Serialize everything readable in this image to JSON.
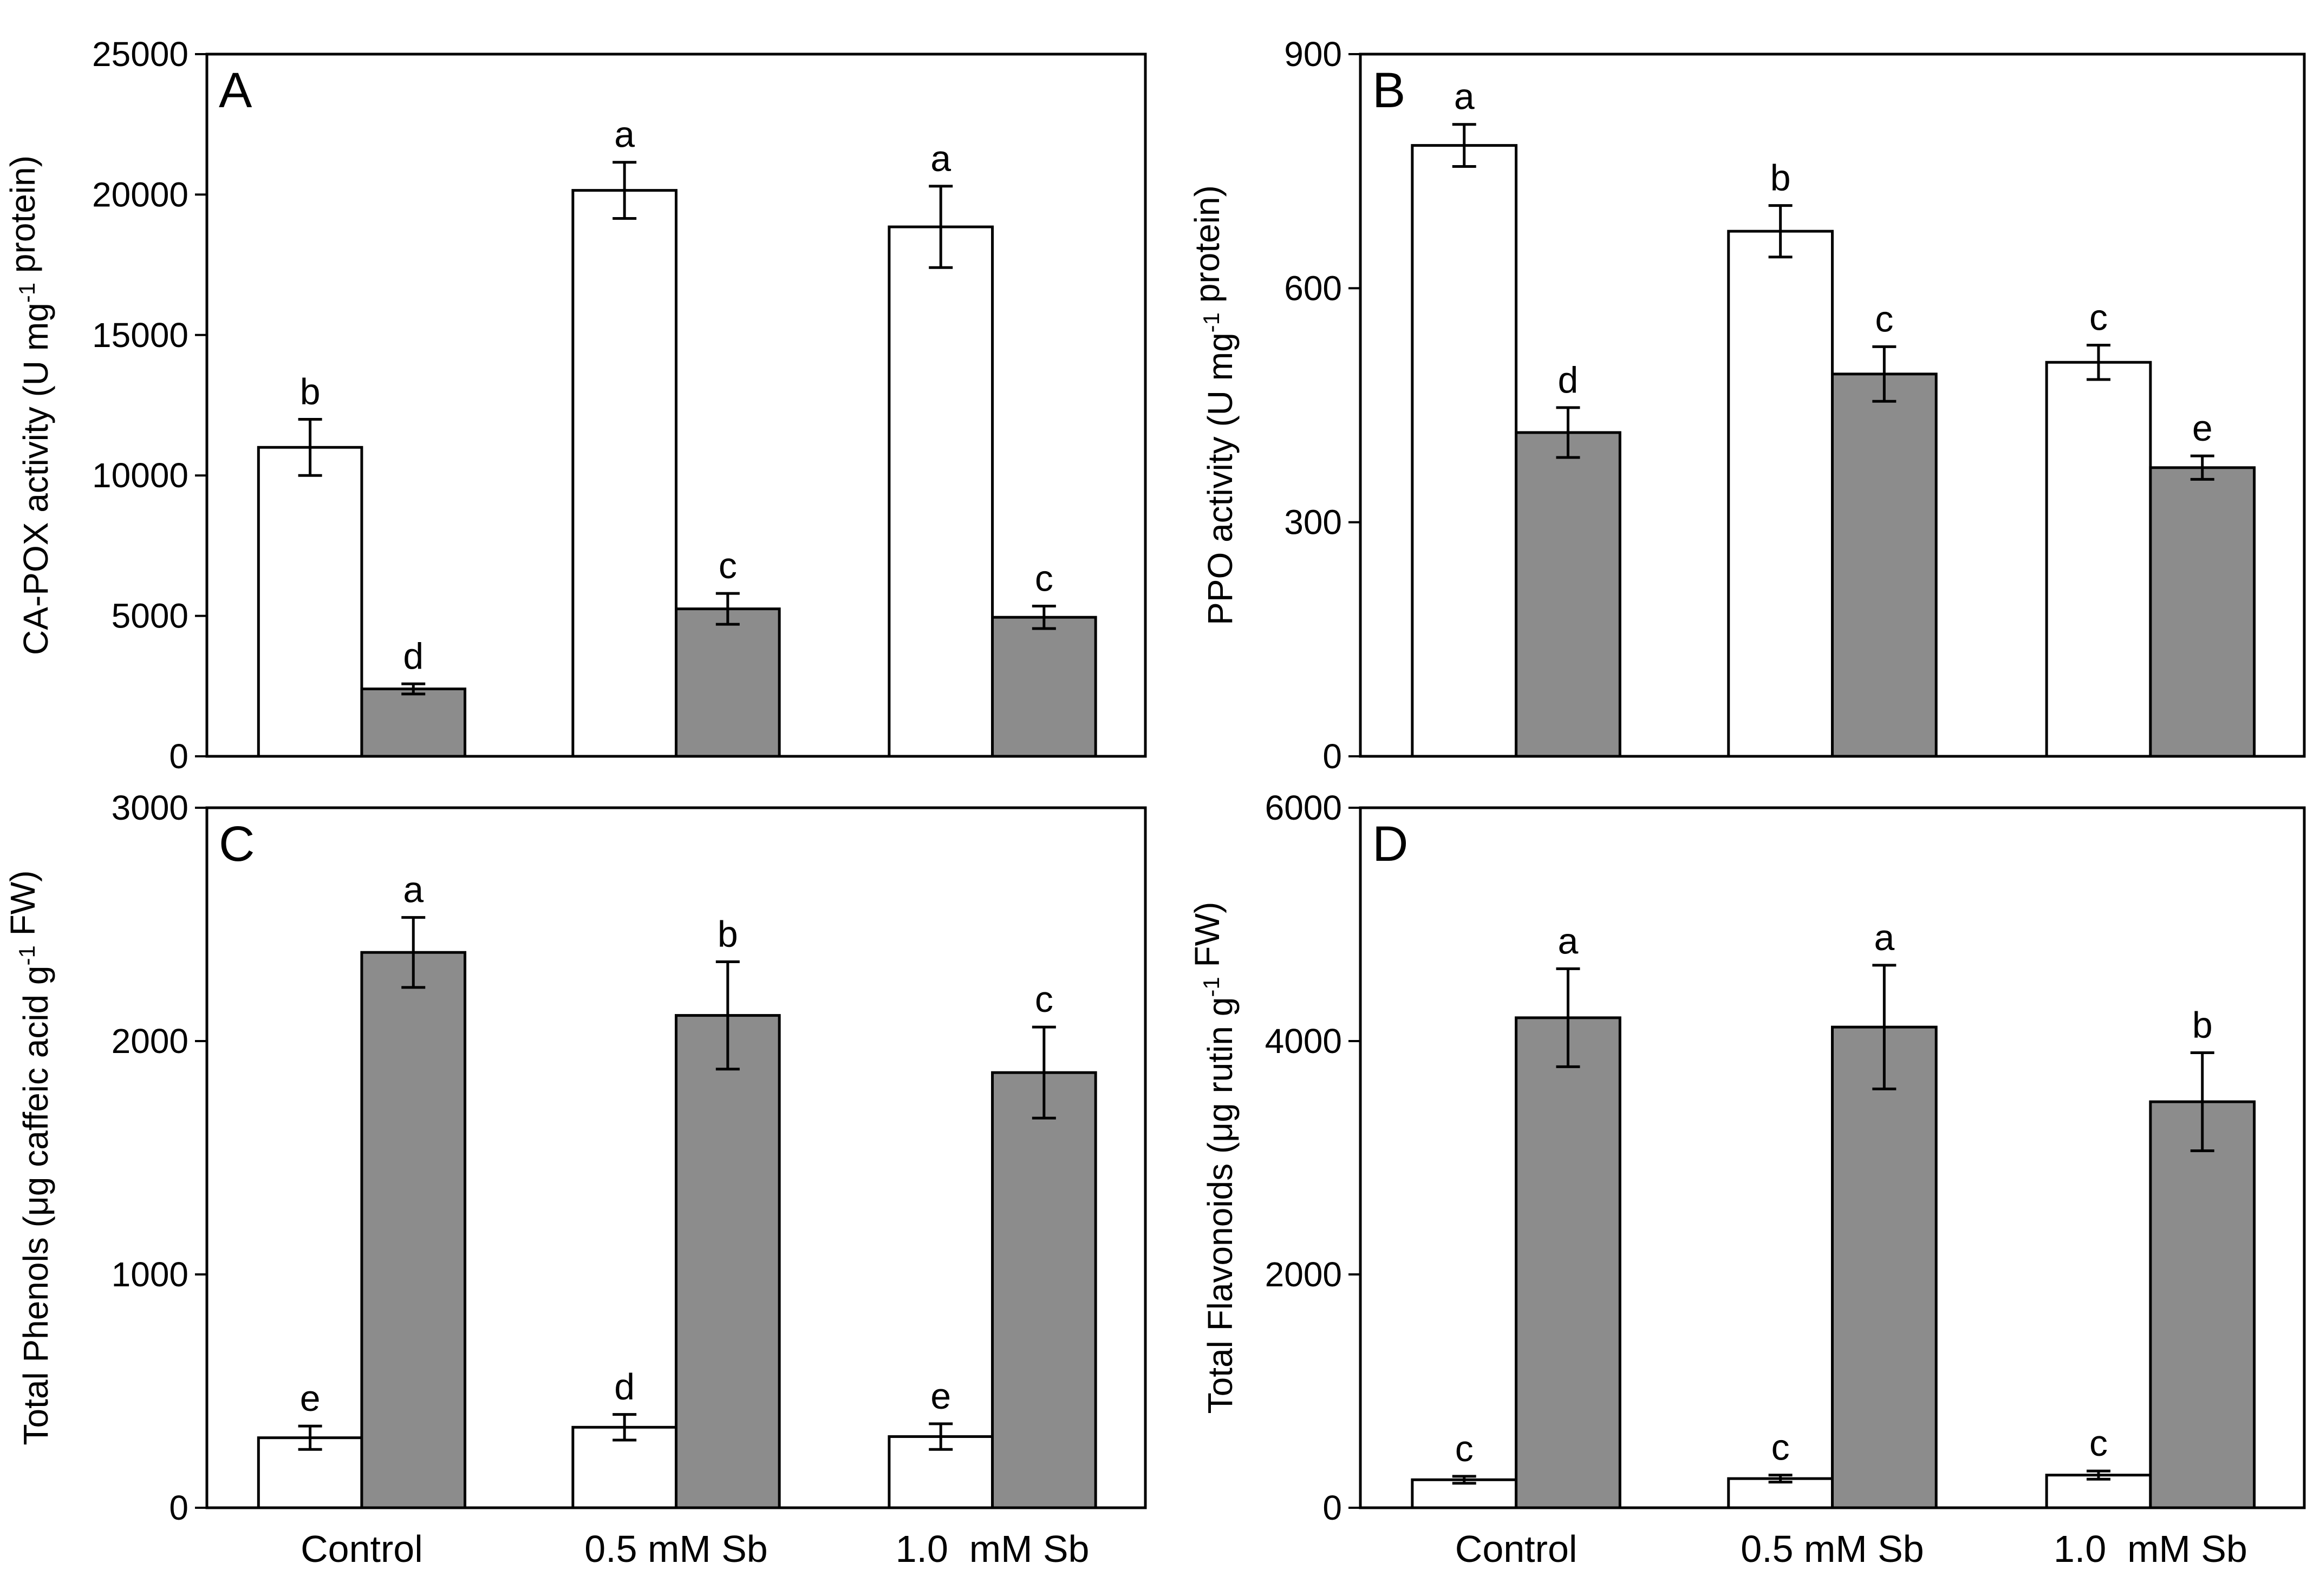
{
  "figure": {
    "categories": [
      "Control",
      "0.5 mM Sb",
      "1.0  mM Sb"
    ],
    "colors": {
      "white_bar": "#ffffff",
      "gray_bar": "#8c8c8c",
      "stroke": "#000000"
    }
  },
  "chart_data": [
    {
      "panel": "A",
      "type": "bar",
      "categories": [
        "Control",
        "0.5 mM Sb",
        "1.0  mM Sb"
      ],
      "ylabel": "CA-POX activity (U mg-1 protein)",
      "ylim": [
        0,
        25000
      ],
      "yticks": [
        0,
        5000,
        10000,
        15000,
        20000,
        25000
      ],
      "show_xticklabels": false,
      "series": [
        {
          "color": "white",
          "values": [
            11000,
            20150,
            18850
          ],
          "errors": [
            1000,
            1000,
            1450
          ],
          "letters": [
            "b",
            "a",
            "a"
          ]
        },
        {
          "color": "gray",
          "values": [
            2400,
            5250,
            4950
          ],
          "errors": [
            180,
            550,
            400
          ],
          "letters": [
            "d",
            "c",
            "c"
          ]
        }
      ]
    },
    {
      "panel": "B",
      "type": "bar",
      "categories": [
        "Control",
        "0.5 mM Sb",
        "1.0  mM Sb"
      ],
      "ylabel": "PPO activity (U mg-1 protein)",
      "ylim": [
        0,
        900
      ],
      "yticks": [
        0,
        300,
        600,
        900
      ],
      "show_xticklabels": false,
      "series": [
        {
          "color": "white",
          "values": [
            783,
            673,
            505
          ],
          "errors": [
            27,
            33,
            22
          ],
          "letters": [
            "a",
            "b",
            "c"
          ]
        },
        {
          "color": "gray",
          "values": [
            415,
            490,
            370
          ],
          "errors": [
            32,
            35,
            15
          ],
          "letters": [
            "d",
            "c",
            "e"
          ]
        }
      ]
    },
    {
      "panel": "C",
      "type": "bar",
      "categories": [
        "Control",
        "0.5 mM Sb",
        "1.0  mM Sb"
      ],
      "ylabel": "Total Phenols (μg caffeic acid g-1 FW)",
      "ylim": [
        0,
        3000
      ],
      "yticks": [
        0,
        1000,
        2000,
        3000
      ],
      "show_xticklabels": true,
      "series": [
        {
          "color": "white",
          "values": [
            300,
            345,
            305
          ],
          "errors": [
            50,
            55,
            55
          ],
          "letters": [
            "e",
            "d",
            "e"
          ]
        },
        {
          "color": "gray",
          "values": [
            2380,
            2110,
            1865
          ],
          "errors": [
            150,
            230,
            195
          ],
          "letters": [
            "a",
            "b",
            "c"
          ]
        }
      ]
    },
    {
      "panel": "D",
      "type": "bar",
      "categories": [
        "Control",
        "0.5 mM Sb",
        "1.0  mM Sb"
      ],
      "ylabel": "Total Flavonoids (μg rutin g-1 FW)",
      "ylim": [
        0,
        6000
      ],
      "yticks": [
        0,
        2000,
        4000,
        6000
      ],
      "show_xticklabels": true,
      "series": [
        {
          "color": "white",
          "values": [
            240,
            250,
            280
          ],
          "errors": [
            30,
            30,
            35
          ],
          "letters": [
            "c",
            "c",
            "c"
          ]
        },
        {
          "color": "gray",
          "values": [
            4200,
            4120,
            3480
          ],
          "errors": [
            420,
            530,
            420
          ],
          "letters": [
            "a",
            "a",
            "b"
          ]
        }
      ]
    }
  ]
}
